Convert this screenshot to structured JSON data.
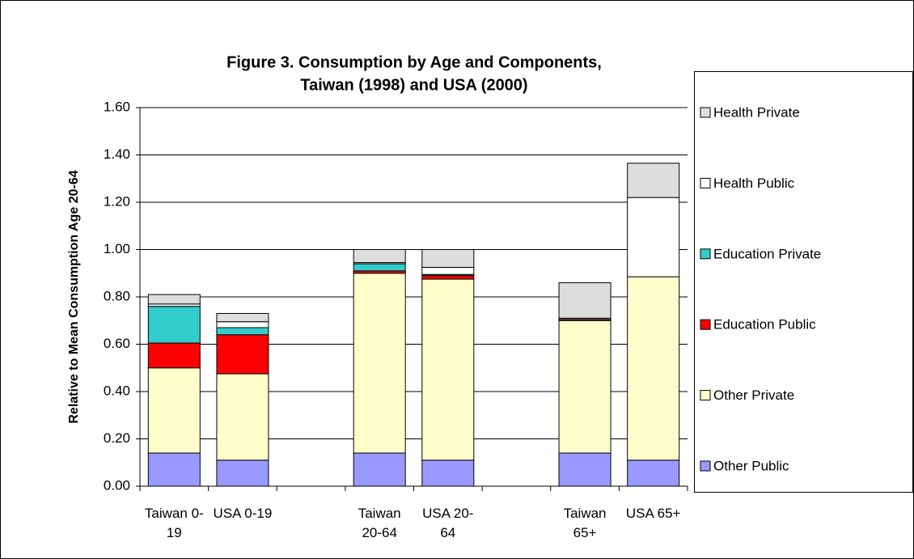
{
  "chart_data": {
    "type": "stacked_bar",
    "title": [
      "Figure 3.  Consumption by Age and Components,",
      "Taiwan (1998) and USA (2000)"
    ],
    "y_label": "Relative to Mean Consumption Age 20-64",
    "categories": [
      "Taiwan 0-19",
      "USA 0-19",
      null,
      "Taiwan 20-64",
      "USA 20-64",
      null,
      "Taiwan 65+",
      "USA 65+"
    ],
    "series": [
      {
        "name": "Other Public",
        "color": "#9999ff",
        "values": [
          0.14,
          0.11,
          null,
          0.14,
          0.11,
          null,
          0.14,
          0.11
        ]
      },
      {
        "name": "Other Private",
        "color": "#ffffcc",
        "values": [
          0.36,
          0.365,
          null,
          0.76,
          0.765,
          null,
          0.56,
          0.775
        ]
      },
      {
        "name": "Education Public",
        "color": "#ff0000",
        "values": [
          0.105,
          0.165,
          null,
          0.01,
          0.015,
          null,
          0.005,
          0
        ]
      },
      {
        "name": "Education Private",
        "color": "#33cccc",
        "values": [
          0.155,
          0.03,
          null,
          0.03,
          0.005,
          null,
          0,
          0
        ]
      },
      {
        "name": "Health Public",
        "color": "#ffffff",
        "values": [
          0.01,
          0.025,
          null,
          0.005,
          0.03,
          null,
          0.005,
          0.335
        ]
      },
      {
        "name": "Health Private",
        "color": "#dddddd",
        "values": [
          0.04,
          0.035,
          null,
          0.055,
          0.075,
          null,
          0.15,
          0.145
        ]
      }
    ],
    "ylim": [
      0,
      1.6
    ],
    "yticks": [
      {
        "value": 0,
        "label": "0.00"
      },
      {
        "value": 0.2,
        "label": "0.20"
      },
      {
        "value": 0.4,
        "label": "0.40"
      },
      {
        "value": 0.6,
        "label": "0.60"
      },
      {
        "value": 0.8,
        "label": "0.80"
      },
      {
        "value": 1.0,
        "label": "1.00"
      },
      {
        "value": 1.2,
        "label": "1.20"
      },
      {
        "value": 1.4,
        "label": "1.40"
      },
      {
        "value": 1.6,
        "label": "1.60"
      }
    ],
    "grid": true,
    "legend": "right"
  }
}
